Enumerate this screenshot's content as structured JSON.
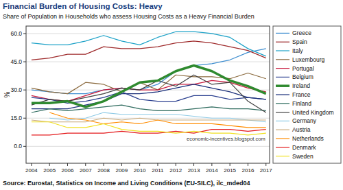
{
  "chart_data": {
    "type": "line",
    "title": "Financial Burden of Housing Costs: Heavy",
    "subtitle": "Share of Population in Households who assess Housing Costs as a Heavy Financial Burden",
    "y_label": "%",
    "annotation": "economic-incentives.blogspot.com",
    "source": "Source: Eurostat, Statistics on Income and Living Conditions (EU-SILC), ilc_mded04",
    "x": [
      2004,
      2005,
      2006,
      2007,
      2008,
      2009,
      2010,
      2011,
      2012,
      2013,
      2014,
      2015,
      2016,
      2017
    ],
    "xlim": [
      2003.7,
      2017.2
    ],
    "xticks": [
      2004,
      2005,
      2006,
      2007,
      2008,
      2009,
      2010,
      2011,
      2012,
      2013,
      2014,
      2015,
      2016,
      2017
    ],
    "ylim": [
      -9,
      64
    ],
    "yticks": [
      {
        "value": 0,
        "label": "0.0"
      },
      {
        "value": 15,
        "label": "15.0"
      },
      {
        "value": 30,
        "label": "30.0"
      },
      {
        "value": 45,
        "label": "45.0"
      },
      {
        "value": 60,
        "label": "60.0"
      }
    ],
    "grid": true,
    "legend": "right",
    "series": [
      {
        "name": "Greece",
        "color": "#3e8ed0",
        "values": [
          30,
          29,
          28,
          28,
          30,
          31,
          30,
          33,
          40,
          43,
          44,
          46,
          50,
          52
        ]
      },
      {
        "name": "Spain",
        "color": "#9e2a2b",
        "values": [
          46,
          47,
          49,
          49,
          53,
          52,
          52,
          53,
          55,
          56,
          55,
          53,
          51,
          47
        ]
      },
      {
        "name": "Italy",
        "color": "#1ba1c7",
        "values": [
          55,
          54,
          54,
          56,
          59,
          56,
          54,
          58,
          61,
          61,
          60,
          58,
          52,
          48
        ]
      },
      {
        "name": "Luxembourg",
        "color": "#8b6a3e",
        "values": [
          31,
          29,
          28,
          34,
          33,
          29,
          34,
          30,
          38,
          37,
          37,
          36,
          39,
          36
        ]
      },
      {
        "name": "Portugal",
        "color": "#c8193c",
        "values": [
          27,
          25,
          24,
          27,
          30,
          31,
          30,
          30,
          33,
          33,
          35,
          34,
          31,
          29
        ]
      },
      {
        "name": "Belgium",
        "color": "#2a3f8f",
        "values": [
          26,
          25,
          23,
          24,
          26,
          29,
          25,
          24,
          24,
          27,
          27,
          25,
          26,
          25
        ]
      },
      {
        "name": "Ireland",
        "color": "#2f8a2f",
        "line_style": "thick",
        "values": [
          23,
          23,
          24,
          21,
          24,
          29,
          34,
          35,
          40,
          43,
          40,
          35,
          32,
          28
        ]
      },
      {
        "name": "France",
        "color": "#1a2f7a",
        "values": [
          20,
          20,
          20,
          22,
          24,
          28,
          28,
          29,
          31,
          33,
          31,
          29,
          26,
          25
        ]
      },
      {
        "name": "Finland",
        "color": "#2e6b5e",
        "values": [
          18,
          20,
          19,
          20,
          21,
          22,
          20,
          19,
          19,
          20,
          21,
          20,
          20,
          19
        ]
      },
      {
        "name": "United Kingdom",
        "color": "#404040",
        "values": [
          22,
          25,
          24,
          26,
          28,
          31,
          30,
          35,
          32,
          38,
          33,
          34,
          24,
          18
        ]
      },
      {
        "name": "Germany",
        "color": "#8ecae6",
        "values": [
          null,
          15,
          14,
          15,
          18,
          17,
          17,
          17,
          17,
          16,
          15,
          15,
          14,
          13
        ]
      },
      {
        "name": "Austria",
        "color": "#c8a878",
        "values": [
          14,
          13,
          13,
          13,
          15,
          14,
          15,
          14,
          14,
          14,
          14,
          14,
          14,
          14
        ]
      },
      {
        "name": "Netherlands",
        "color": "#ff8c00",
        "values": [
          null,
          18,
          15,
          14,
          12,
          13,
          12,
          14,
          12,
          12,
          12,
          11,
          10,
          10
        ]
      },
      {
        "name": "Denmark",
        "color": "#e41a1c",
        "values": [
          6,
          6,
          7,
          7,
          7,
          8,
          7,
          7,
          8,
          7,
          9,
          9,
          8,
          9
        ]
      },
      {
        "name": "Sweden",
        "color": "#f0e020",
        "values": [
          13,
          13,
          10,
          10,
          12,
          9,
          8,
          8,
          7,
          8,
          7,
          7,
          6,
          7
        ]
      }
    ]
  }
}
